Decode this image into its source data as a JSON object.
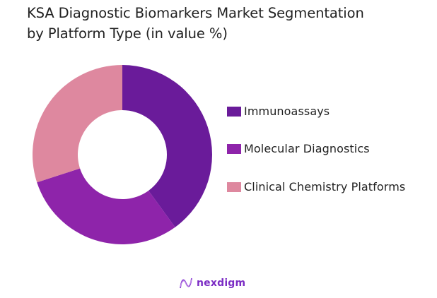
{
  "header": {
    "title_line1": "KSA Diagnostic Biomarkers Market Segmentation",
    "title_line2": "by Platform Type (in value %)"
  },
  "legend": {
    "items": [
      {
        "label": "Immunoassays",
        "color": "#6a1b9a"
      },
      {
        "label": "Molecular Diagnostics",
        "color": "#8e24aa"
      },
      {
        "label": "Clinical Chemistry Platforms",
        "color": "#de889f"
      }
    ]
  },
  "brand": {
    "name": "nexdigm",
    "icon": "nexdigm-wave-logo-icon"
  },
  "chart_data": {
    "type": "pie",
    "variant": "donut",
    "title": "KSA Diagnostic Biomarkers Market Segmentation by Platform Type (in value %)",
    "categories": [
      "Immunoassays",
      "Molecular Diagnostics",
      "Clinical Chemistry Platforms"
    ],
    "values": [
      40,
      30,
      30
    ],
    "colors": [
      "#6a1b9a",
      "#8e24aa",
      "#de889f"
    ],
    "unit": "%",
    "start_angle": "12 o'clock, clockwise",
    "data_labels": false,
    "legend_position": "right"
  }
}
